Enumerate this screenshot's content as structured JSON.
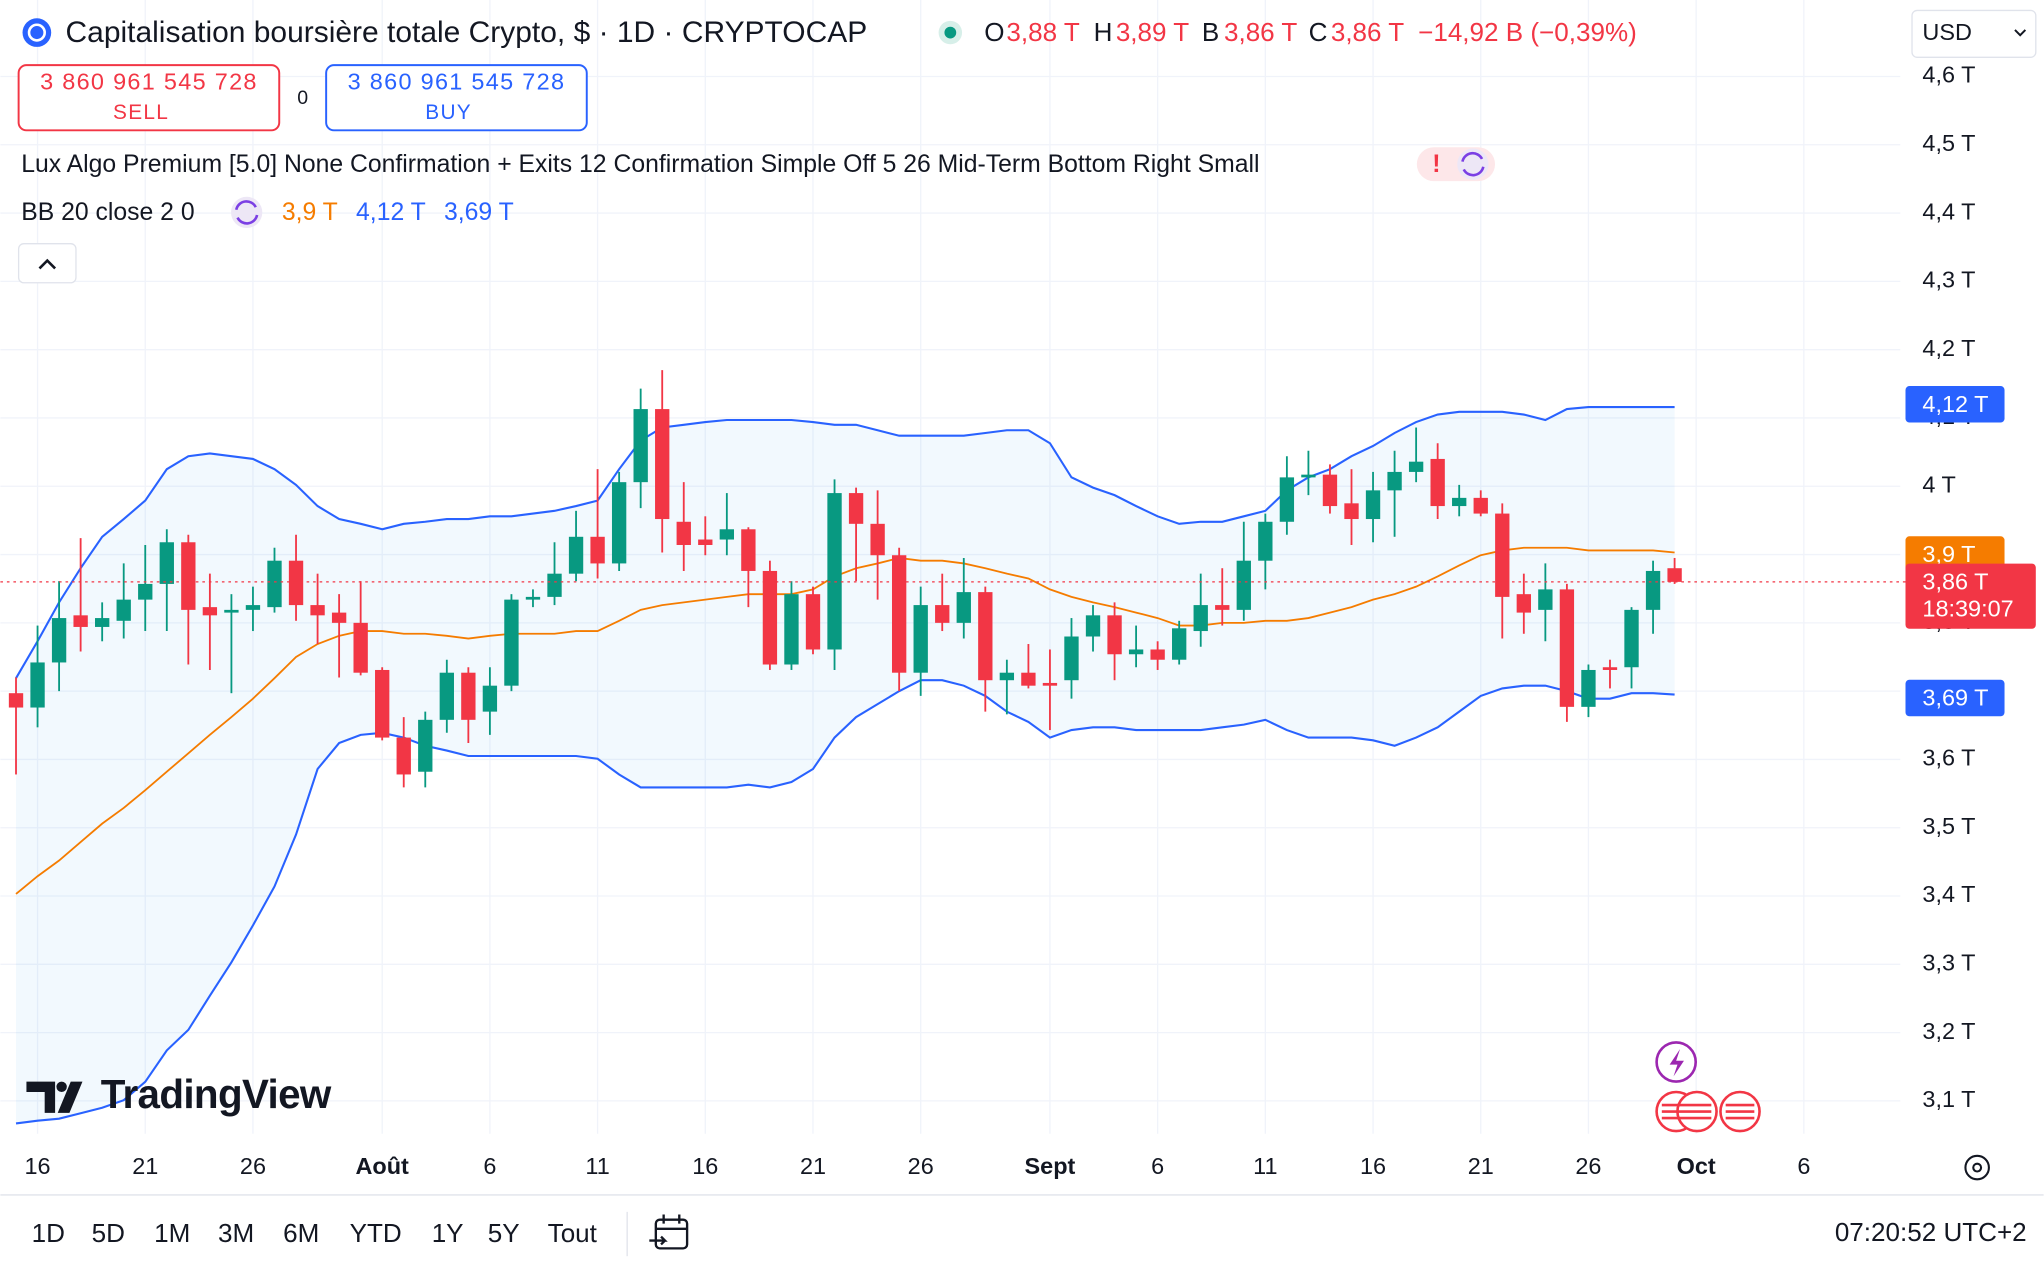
{
  "header": {
    "title": "Capitalisation boursière totale Crypto, $ · 1D · CRYPTOCAP",
    "ohlc": [
      {
        "key": "O",
        "value": "3,88 T"
      },
      {
        "key": "H",
        "value": "3,89 T"
      },
      {
        "key": "B",
        "value": "3,86 T"
      },
      {
        "key": "C",
        "value": "3,86 T"
      }
    ],
    "change": "−14,92 B (−0,39%)",
    "currency": "USD"
  },
  "trade": {
    "sell_price": "3 860 961 545 728",
    "sell_label": "SELL",
    "spread": "0",
    "buy_price": "3 860 961 545 728",
    "buy_label": "BUY"
  },
  "indicators": {
    "lux": "Lux Algo Premium [5.0] None Confirmation + Exits 12 Confirmation Simple Off 5 26 Mid-Term Bottom Right Small",
    "lux_alert": "!"
  },
  "chart_data": {
    "type": "candlestick",
    "categories": [
      null,
      "16",
      null,
      null,
      null,
      null,
      "21",
      null,
      null,
      null,
      null,
      "26",
      null,
      null,
      null,
      null,
      null,
      "Août",
      null,
      null,
      null,
      null,
      "6",
      null,
      null,
      null,
      null,
      "11",
      null,
      null,
      null,
      null,
      "16",
      null,
      null,
      null,
      null,
      "21",
      null,
      null,
      null,
      null,
      "26",
      null,
      null,
      null,
      null,
      null,
      "Sept",
      null,
      null,
      null,
      null,
      "6",
      null,
      null,
      null,
      null,
      "11",
      null,
      null,
      null,
      null,
      "16",
      null,
      null,
      null,
      null,
      "21",
      null,
      null,
      null,
      null,
      "26",
      null,
      null,
      null,
      null,
      "Oct",
      null,
      null,
      null,
      null,
      "6"
    ],
    "open": [
      3.697,
      3.676,
      3.742,
      3.811,
      3.794,
      3.803,
      3.834,
      3.857,
      3.918,
      3.823,
      3.815,
      3.819,
      3.823,
      3.891,
      3.826,
      3.815,
      3.8,
      3.731,
      3.632,
      3.582,
      3.658,
      3.727,
      3.67,
      3.708,
      3.834,
      3.838,
      3.872,
      3.926,
      3.887,
      4.006,
      4.113,
      3.948,
      3.922,
      3.922,
      3.937,
      3.876,
      3.739,
      3.842,
      3.761,
      3.99,
      3.945,
      3.899,
      3.727,
      3.826,
      3.8,
      3.845,
      3.716,
      3.727,
      3.712,
      3.716,
      3.78,
      3.811,
      3.754,
      3.761,
      3.746,
      3.788,
      3.826,
      3.819,
      3.891,
      3.948,
      4.013,
      4.017,
      3.975,
      3.952,
      3.994,
      4.021,
      4.04,
      3.971,
      3.983,
      3.96,
      3.842,
      3.819,
      3.849,
      3.677,
      3.735,
      3.735,
      3.819,
      3.88,
      null,
      null,
      null,
      null,
      null,
      null
    ],
    "high": [
      3.72,
      3.796,
      3.861,
      3.924,
      3.83,
      3.887,
      3.914,
      3.937,
      3.929,
      3.872,
      3.842,
      3.853,
      3.91,
      3.929,
      3.872,
      3.842,
      3.861,
      3.735,
      3.662,
      3.67,
      3.746,
      3.735,
      3.735,
      3.842,
      3.849,
      3.918,
      3.964,
      4.025,
      4.021,
      4.143,
      4.17,
      4.006,
      3.956,
      3.99,
      3.94,
      3.891,
      3.861,
      3.853,
      4.01,
      3.998,
      3.994,
      3.91,
      3.853,
      3.872,
      3.895,
      3.853,
      3.746,
      3.769,
      3.761,
      3.807,
      3.826,
      3.83,
      3.796,
      3.773,
      3.803,
      3.872,
      3.88,
      3.948,
      3.96,
      4.044,
      4.052,
      4.032,
      4.025,
      4.021,
      4.052,
      4.086,
      4.063,
      4.002,
      3.994,
      3.975,
      3.872,
      3.887,
      3.857,
      3.739,
      3.746,
      3.823,
      3.891,
      3.895,
      null,
      null,
      null,
      null,
      null,
      null
    ],
    "low": [
      3.578,
      3.647,
      3.7,
      3.758,
      3.773,
      3.777,
      3.788,
      3.788,
      3.739,
      3.731,
      3.697,
      3.788,
      3.815,
      3.803,
      3.769,
      3.72,
      3.723,
      3.628,
      3.559,
      3.559,
      3.639,
      3.624,
      3.636,
      3.7,
      3.823,
      3.826,
      3.861,
      3.865,
      3.876,
      3.968,
      3.903,
      3.876,
      3.899,
      3.899,
      3.823,
      3.731,
      3.731,
      3.754,
      3.731,
      3.861,
      3.834,
      3.7,
      3.693,
      3.788,
      3.777,
      3.67,
      3.666,
      3.704,
      3.643,
      3.689,
      3.758,
      3.716,
      3.735,
      3.731,
      3.739,
      3.765,
      3.796,
      3.803,
      3.849,
      3.929,
      3.987,
      3.96,
      3.914,
      3.918,
      3.926,
      4.006,
      3.952,
      3.956,
      3.956,
      3.777,
      3.784,
      3.773,
      3.655,
      3.662,
      3.704,
      3.704,
      3.784,
      3.857,
      null,
      null,
      null,
      null,
      null,
      null
    ],
    "close": [
      3.676,
      3.742,
      3.807,
      3.794,
      3.807,
      3.834,
      3.857,
      3.918,
      3.819,
      3.811,
      3.819,
      3.826,
      3.891,
      3.826,
      3.811,
      3.8,
      3.727,
      3.632,
      3.578,
      3.658,
      3.727,
      3.658,
      3.708,
      3.834,
      3.838,
      3.872,
      3.926,
      3.887,
      4.006,
      4.113,
      3.952,
      3.914,
      3.914,
      3.937,
      3.876,
      3.739,
      3.842,
      3.761,
      3.99,
      3.945,
      3.899,
      3.727,
      3.826,
      3.8,
      3.845,
      3.716,
      3.727,
      3.708,
      3.708,
      3.78,
      3.811,
      3.754,
      3.761,
      3.746,
      3.792,
      3.826,
      3.819,
      3.891,
      3.948,
      4.013,
      4.017,
      3.971,
      3.952,
      3.994,
      4.021,
      4.036,
      3.971,
      3.983,
      3.96,
      3.838,
      3.815,
      3.849,
      3.677,
      3.731,
      3.731,
      3.819,
      3.876,
      3.86,
      null,
      null,
      null,
      null,
      null,
      null
    ],
    "up_color": "#089981",
    "down_color": "#f23645",
    "bollinger": {
      "label": "BB 20 close 2 0",
      "basis_color": "#f57c00",
      "band_color": "#2962ff",
      "fill_color": "rgba(33,150,243,0.06)",
      "basis": [
        3.403,
        3.429,
        3.452,
        3.479,
        3.506,
        3.529,
        3.555,
        3.582,
        3.609,
        3.636,
        3.662,
        3.689,
        3.719,
        3.75,
        3.769,
        3.781,
        3.788,
        3.788,
        3.784,
        3.784,
        3.781,
        3.777,
        3.781,
        3.784,
        3.784,
        3.784,
        3.788,
        3.788,
        3.803,
        3.819,
        3.826,
        3.83,
        3.834,
        3.838,
        3.842,
        3.842,
        3.842,
        3.849,
        3.868,
        3.88,
        3.887,
        3.895,
        3.891,
        3.891,
        3.887,
        3.88,
        3.872,
        3.865,
        3.849,
        3.838,
        3.83,
        3.823,
        3.815,
        3.807,
        3.796,
        3.796,
        3.8,
        3.8,
        3.803,
        3.803,
        3.807,
        3.815,
        3.823,
        3.834,
        3.842,
        3.853,
        3.868,
        3.884,
        3.899,
        3.906,
        3.91,
        3.91,
        3.91,
        3.906,
        3.906,
        3.906,
        3.906,
        3.903,
        null,
        null,
        null,
        null,
        null,
        null
      ],
      "upper": [
        3.719,
        3.773,
        3.83,
        3.88,
        3.926,
        3.952,
        3.979,
        4.025,
        4.044,
        4.048,
        4.044,
        4.04,
        4.025,
        4.002,
        3.971,
        3.952,
        3.945,
        3.937,
        3.945,
        3.948,
        3.952,
        3.952,
        3.956,
        3.956,
        3.96,
        3.964,
        3.971,
        3.979,
        4.025,
        4.067,
        4.086,
        4.09,
        4.094,
        4.097,
        4.097,
        4.097,
        4.097,
        4.094,
        4.09,
        4.09,
        4.082,
        4.074,
        4.074,
        4.074,
        4.074,
        4.078,
        4.082,
        4.082,
        4.063,
        4.013,
        3.998,
        3.987,
        3.971,
        3.956,
        3.945,
        3.948,
        3.948,
        3.956,
        3.964,
        3.994,
        4.013,
        4.025,
        4.044,
        4.059,
        4.078,
        4.094,
        4.105,
        4.109,
        4.109,
        4.109,
        4.105,
        4.097,
        4.113,
        4.116,
        4.116,
        4.116,
        4.116,
        4.116,
        null,
        null,
        null,
        null,
        null,
        null
      ],
      "lower": [
        3.067,
        3.071,
        3.074,
        3.082,
        3.09,
        3.101,
        3.128,
        3.174,
        3.204,
        3.254,
        3.303,
        3.357,
        3.414,
        3.49,
        3.586,
        3.624,
        3.636,
        3.639,
        3.632,
        3.62,
        3.613,
        3.605,
        3.605,
        3.605,
        3.605,
        3.605,
        3.605,
        3.601,
        3.578,
        3.559,
        3.559,
        3.559,
        3.559,
        3.559,
        3.563,
        3.559,
        3.567,
        3.586,
        3.632,
        3.662,
        3.681,
        3.7,
        3.716,
        3.716,
        3.708,
        3.693,
        3.67,
        3.655,
        3.632,
        3.643,
        3.647,
        3.647,
        3.643,
        3.643,
        3.643,
        3.643,
        3.647,
        3.651,
        3.658,
        3.643,
        3.632,
        3.632,
        3.632,
        3.628,
        3.62,
        3.632,
        3.647,
        3.67,
        3.693,
        3.704,
        3.708,
        3.708,
        3.7,
        3.689,
        3.689,
        3.697,
        3.697,
        3.695,
        null,
        null,
        null,
        null,
        null,
        null
      ],
      "legend_values": [
        {
          "value": 3.9,
          "label": "3,9 T",
          "color": "#f57c00"
        },
        {
          "value": 4.12,
          "label": "4,12 T",
          "color": "#2962ff"
        },
        {
          "value": 3.69,
          "label": "3,69 T",
          "color": "#2962ff"
        }
      ]
    },
    "ylim": [
      3.052,
      4.712
    ],
    "yticks": [
      {
        "value": 3.1,
        "label": "3,1 T"
      },
      {
        "value": 3.2,
        "label": "3,2 T"
      },
      {
        "value": 3.3,
        "label": "3,3 T"
      },
      {
        "value": 3.4,
        "label": "3,4 T"
      },
      {
        "value": 3.5,
        "label": "3,5 T"
      },
      {
        "value": 3.6,
        "label": "3,6 T"
      },
      {
        "value": 3.7,
        "label": "3,7 T"
      },
      {
        "value": 3.8,
        "label": "3,8 T"
      },
      {
        "value": 3.9,
        "label": "3,9 T"
      },
      {
        "value": 4.0,
        "label": "4 T"
      },
      {
        "value": 4.1,
        "label": "4,1 T"
      },
      {
        "value": 4.2,
        "label": "4,2 T"
      },
      {
        "value": 4.3,
        "label": "4,3 T"
      },
      {
        "value": 4.4,
        "label": "4,4 T"
      },
      {
        "value": 4.5,
        "label": "4,5 T"
      },
      {
        "value": 4.6,
        "label": "4,6 T"
      }
    ],
    "grid": true,
    "price_badges": [
      {
        "value": 4.12,
        "label": "4,12 T",
        "color": "#2962ff"
      },
      {
        "value": 3.9,
        "label": "3,9 T",
        "color": "#f57c00"
      },
      {
        "value": 3.69,
        "label": "3,69 T",
        "color": "#2962ff"
      }
    ],
    "last_price": {
      "value": 3.86,
      "label": "3,86 T",
      "countdown": "18:39:07",
      "color": "#f23645"
    }
  },
  "watermark": "TradingView",
  "toolbar": {
    "ranges": [
      "1D",
      "5D",
      "1M",
      "3M",
      "6M",
      "YTD",
      "1Y",
      "5Y",
      "Tout"
    ],
    "clock": "07:20:52 UTC+2"
  }
}
